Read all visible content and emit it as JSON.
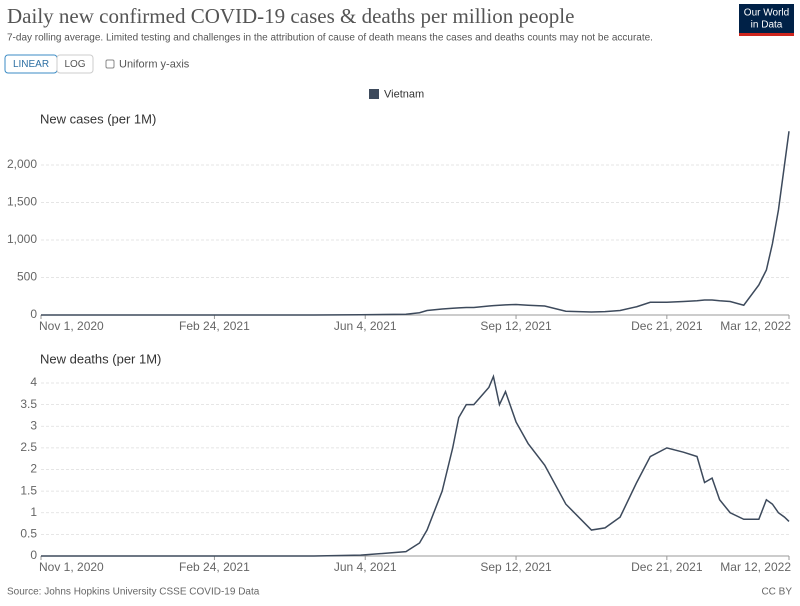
{
  "title": "Daily new confirmed COVID-19 cases & deaths per million people",
  "subtitle": "7-day rolling average. Limited testing and challenges in the attribution of cause of death means the cases and deaths counts may not be accurate.",
  "controls": {
    "linear": "LINEAR",
    "log": "LOG",
    "uniform": "Uniform y-axis"
  },
  "logo": [
    "Our World",
    "in Data"
  ],
  "source": "Source: Johns Hopkins University CSSE COVID-19 Data",
  "license": "CC BY",
  "chart_data": [
    {
      "type": "line",
      "title": "New cases (per 1M)",
      "x": [
        "2020-11-01",
        "2020-12-01",
        "2021-01-01",
        "2021-02-01",
        "2021-03-01",
        "2021-04-01",
        "2021-05-01",
        "2021-06-01",
        "2021-07-01",
        "2021-07-10",
        "2021-07-15",
        "2021-07-25",
        "2021-08-01",
        "2021-08-05",
        "2021-08-10",
        "2021-08-15",
        "2021-08-20",
        "2021-08-25",
        "2021-08-28",
        "2021-09-01",
        "2021-09-05",
        "2021-09-12",
        "2021-09-20",
        "2021-10-01",
        "2021-10-15",
        "2021-11-01",
        "2021-11-10",
        "2021-11-20",
        "2021-12-01",
        "2021-12-10",
        "2021-12-21",
        "2022-01-01",
        "2022-01-10",
        "2022-01-15",
        "2022-01-20",
        "2022-01-25",
        "2022-02-01",
        "2022-02-10",
        "2022-02-20",
        "2022-02-25",
        "2022-03-01",
        "2022-03-05",
        "2022-03-09",
        "2022-03-12"
      ],
      "series": [
        {
          "name": "Vietnam",
          "color": "#3d4a5c",
          "values": [
            0.5,
            0.3,
            0.5,
            0.5,
            0.3,
            0.2,
            0.5,
            3,
            10,
            30,
            60,
            80,
            90,
            95,
            100,
            100,
            110,
            120,
            125,
            130,
            135,
            140,
            130,
            120,
            50,
            40,
            45,
            60,
            110,
            170,
            170,
            180,
            190,
            200,
            200,
            190,
            180,
            130,
            400,
            600,
            950,
            1400,
            2000,
            2450
          ]
        }
      ],
      "xlim": [
        "2020-11-01",
        "2022-03-12"
      ],
      "xticks": [
        {
          "value": "2020-11-01",
          "label": "Nov 1, 2020"
        },
        {
          "value": "2021-02-24",
          "label": "Feb 24, 2021"
        },
        {
          "value": "2021-06-04",
          "label": "Jun 4, 2021"
        },
        {
          "value": "2021-09-12",
          "label": "Sep 12, 2021"
        },
        {
          "value": "2021-12-21",
          "label": "Dec 21, 2021"
        },
        {
          "value": "2022-03-12",
          "label": "Mar 12, 2022"
        }
      ],
      "ylim": [
        0,
        2450
      ],
      "yticks": [
        0,
        500,
        {
          "value": 1000,
          "label": "1,000"
        },
        {
          "value": 1500,
          "label": "1,500"
        },
        {
          "value": 2000,
          "label": "2,000"
        }
      ],
      "grid": true
    },
    {
      "type": "line",
      "title": "New deaths (per 1M)",
      "x": [
        "2020-11-01",
        "2020-12-01",
        "2021-01-01",
        "2021-02-01",
        "2021-03-01",
        "2021-04-01",
        "2021-05-01",
        "2021-06-01",
        "2021-07-01",
        "2021-07-10",
        "2021-07-15",
        "2021-07-25",
        "2021-08-01",
        "2021-08-05",
        "2021-08-10",
        "2021-08-15",
        "2021-08-20",
        "2021-08-25",
        "2021-08-28",
        "2021-09-01",
        "2021-09-05",
        "2021-09-12",
        "2021-09-20",
        "2021-10-01",
        "2021-10-15",
        "2021-11-01",
        "2021-11-10",
        "2021-11-20",
        "2021-12-01",
        "2021-12-10",
        "2021-12-21",
        "2022-01-01",
        "2022-01-10",
        "2022-01-15",
        "2022-01-20",
        "2022-01-25",
        "2022-02-01",
        "2022-02-10",
        "2022-02-20",
        "2022-02-25",
        "2022-03-01",
        "2022-03-05",
        "2022-03-09",
        "2022-03-12"
      ],
      "series": [
        {
          "color": "#3d4a5c",
          "values": [
            0,
            0,
            0,
            0,
            0,
            0,
            0,
            0.02,
            0.1,
            0.3,
            0.6,
            1.5,
            2.5,
            3.2,
            3.5,
            3.5,
            3.7,
            3.9,
            4.15,
            3.5,
            3.8,
            3.1,
            2.6,
            2.1,
            1.2,
            0.6,
            0.65,
            0.9,
            1.7,
            2.3,
            2.5,
            2.4,
            2.3,
            1.7,
            1.8,
            1.3,
            1.0,
            0.85,
            0.85,
            1.3,
            1.2,
            1.0,
            0.9,
            0.8
          ]
        }
      ],
      "xlim": [
        "2020-11-01",
        "2022-03-12"
      ],
      "xticks": [
        {
          "value": "2020-11-01",
          "label": "Nov 1, 2020"
        },
        {
          "value": "2021-02-24",
          "label": "Feb 24, 2021"
        },
        {
          "value": "2021-06-04",
          "label": "Jun 4, 2021"
        },
        {
          "value": "2021-09-12",
          "label": "Sep 12, 2021"
        },
        {
          "value": "2021-12-21",
          "label": "Dec 21, 2021"
        },
        {
          "value": "2022-03-12",
          "label": "Mar 12, 2022"
        }
      ],
      "ylim": [
        0,
        4.2
      ],
      "yticks": [
        0,
        0.5,
        1,
        1.5,
        2,
        2.5,
        3,
        3.5,
        4
      ],
      "grid": true
    }
  ]
}
